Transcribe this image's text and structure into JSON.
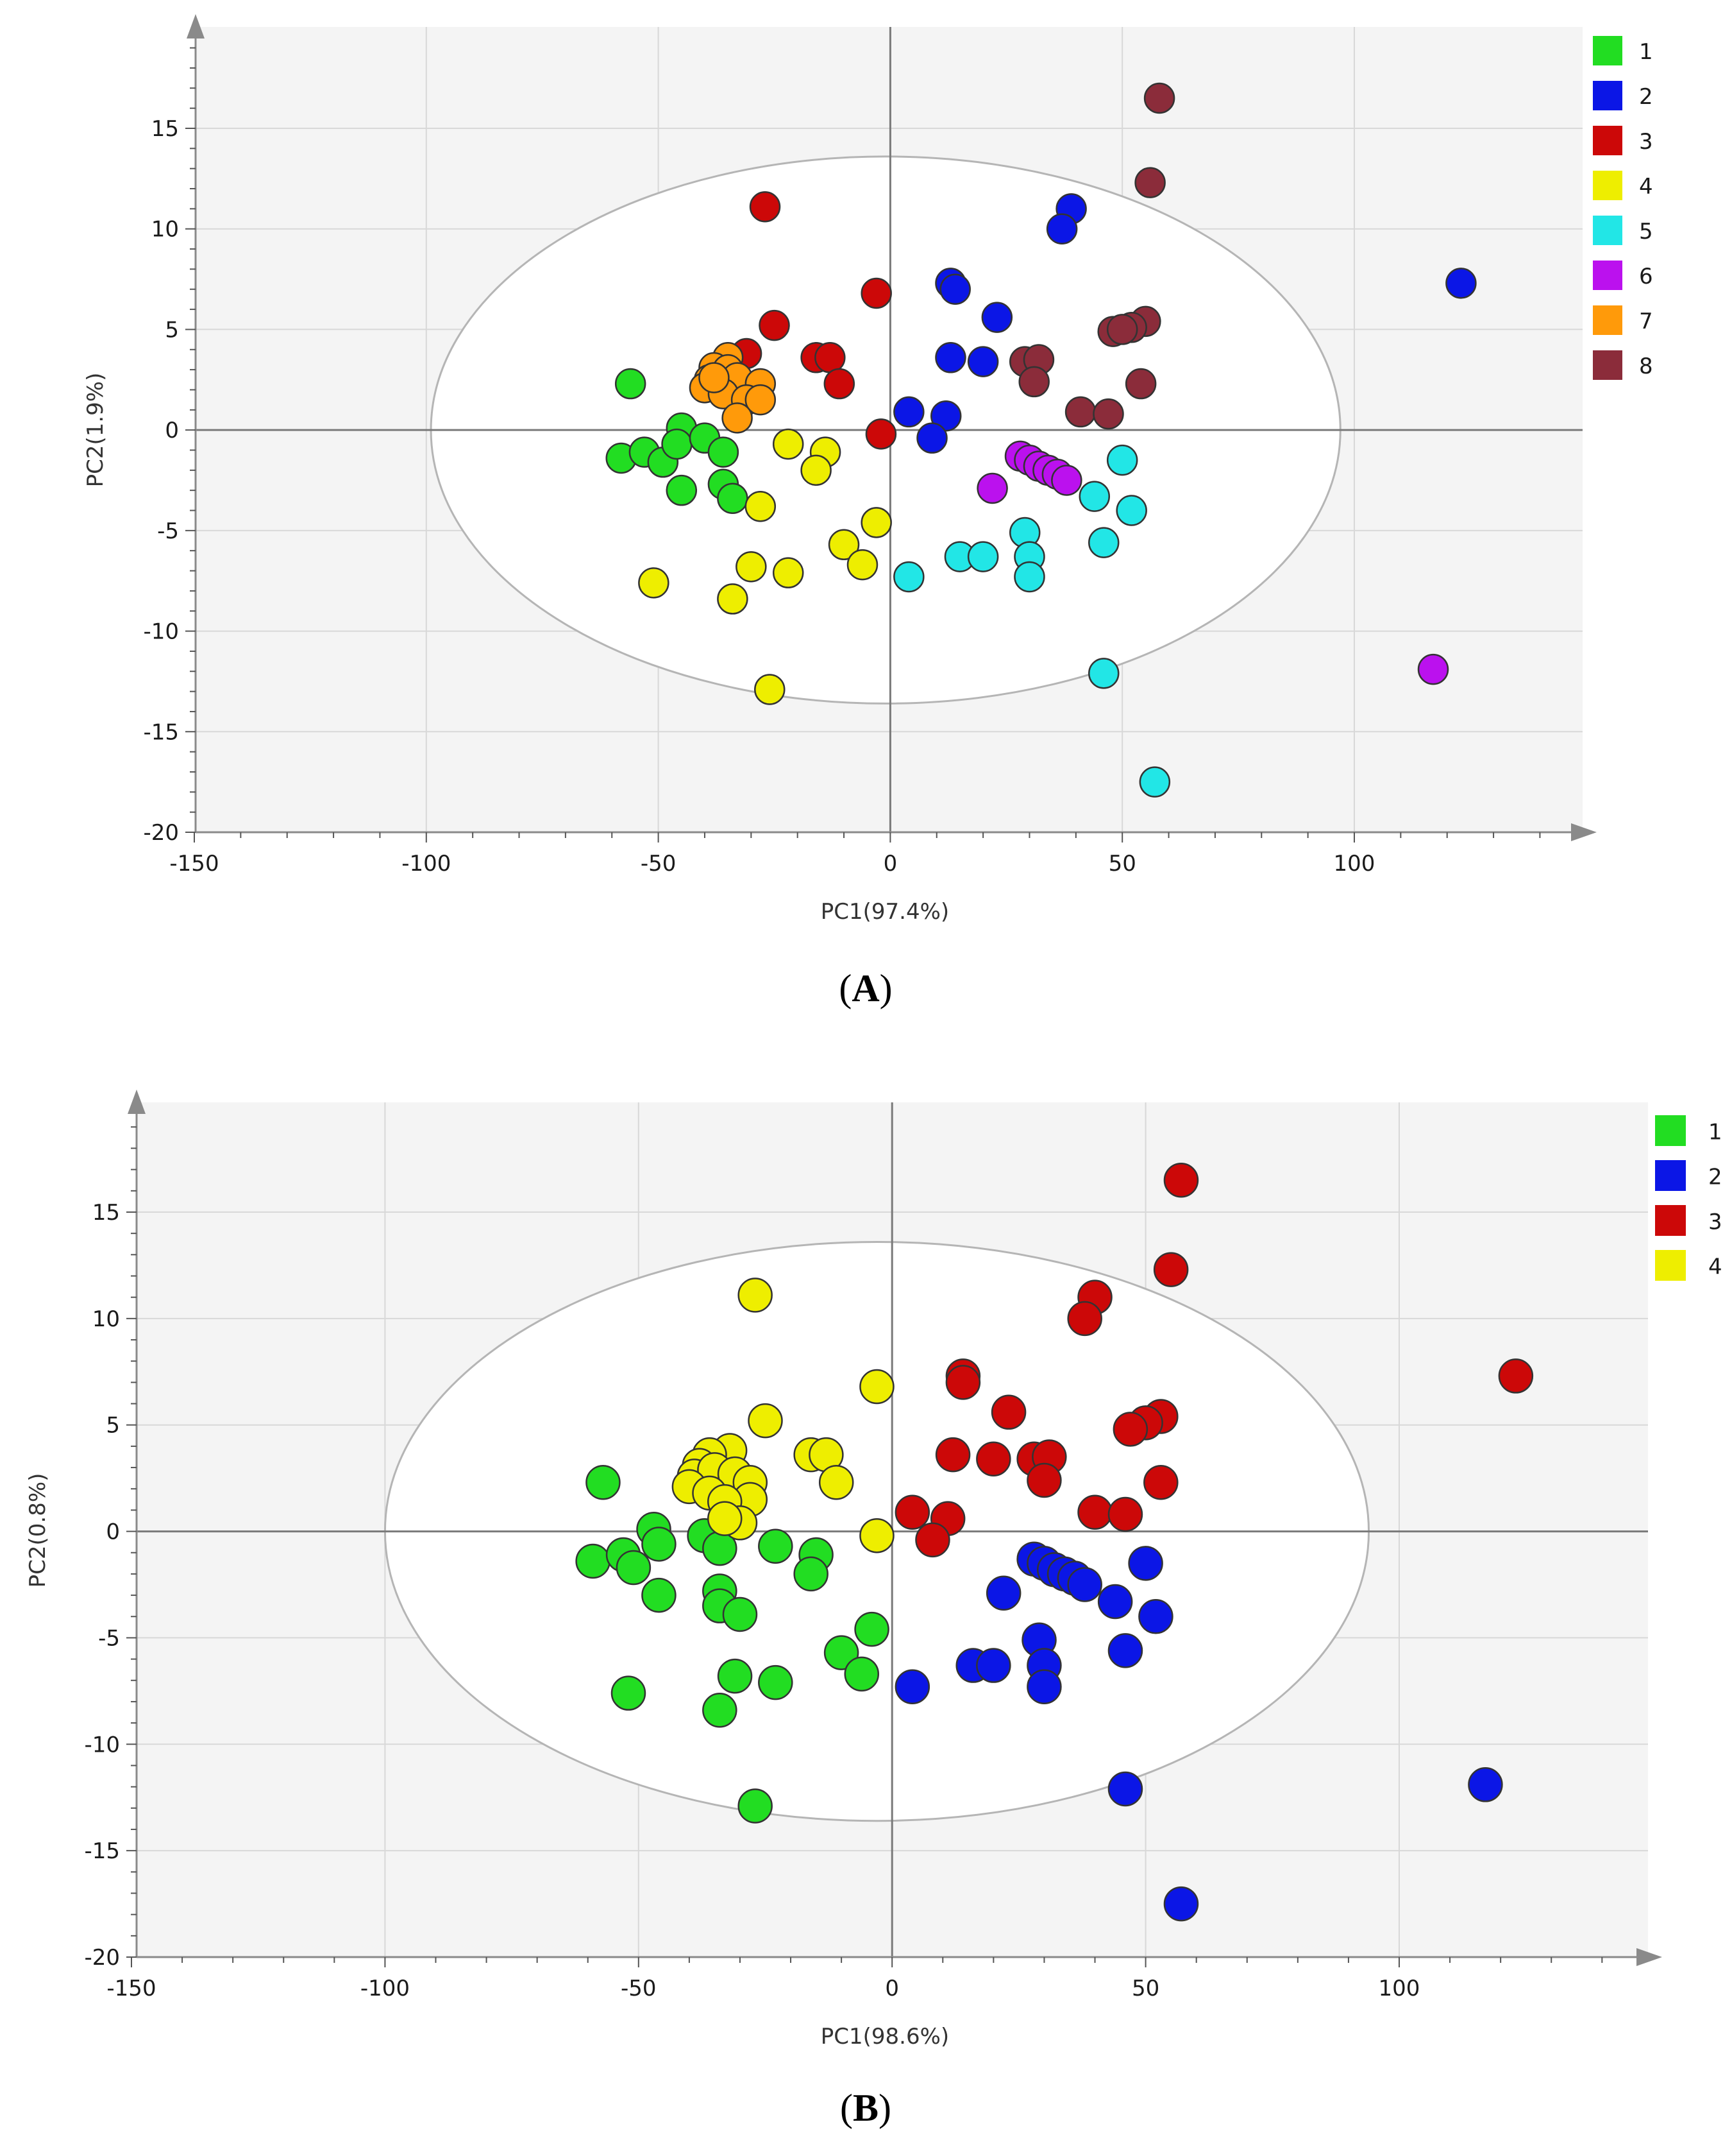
{
  "chart_data": [
    {
      "type": "scatter",
      "panel_label": "A",
      "xlabel": "PC1(97.4%)",
      "ylabel": "PC2(1.9%)",
      "xlim": [
        -150,
        145
      ],
      "ylim": [
        -20,
        19.5
      ],
      "xticks": [
        -150,
        -100,
        -50,
        0,
        50,
        100
      ],
      "yticks": [
        -20,
        -15,
        -10,
        -5,
        0,
        5,
        10,
        15
      ],
      "grid": true,
      "legend_position": "top-right",
      "confidence_ellipse": {
        "center": [
          -1,
          0
        ],
        "semi_axis_x": 98,
        "semi_axis_y": 13.6
      },
      "series": [
        {
          "name": "1",
          "color": "#22dd22",
          "points": [
            [
              -56,
              2.3
            ],
            [
              -58,
              -1.4
            ],
            [
              -53,
              -1.1
            ],
            [
              -49,
              -1.6
            ],
            [
              -45,
              0.1
            ],
            [
              -46,
              -0.7
            ],
            [
              -40,
              -0.4
            ],
            [
              -36,
              -1.1
            ],
            [
              -45,
              -3
            ],
            [
              -36,
              -2.7
            ],
            [
              -34,
              -3.4
            ]
          ]
        },
        {
          "name": "2",
          "color": "#0b16e6",
          "points": [
            [
              39,
              11
            ],
            [
              37,
              10
            ],
            [
              13,
              7.3
            ],
            [
              14,
              7
            ],
            [
              23,
              5.6
            ],
            [
              13,
              3.6
            ],
            [
              20,
              3.4
            ],
            [
              4,
              0.9
            ],
            [
              12,
              0.7
            ],
            [
              9,
              -0.4
            ],
            [
              123,
              7.3
            ]
          ]
        },
        {
          "name": "3",
          "color": "#cc0808",
          "points": [
            [
              -27,
              11.1
            ],
            [
              -3,
              6.8
            ],
            [
              -25,
              5.2
            ],
            [
              -31,
              3.8
            ],
            [
              -16,
              3.6
            ],
            [
              -13,
              3.6
            ],
            [
              -11,
              2.3
            ],
            [
              -2,
              -0.2
            ]
          ]
        },
        {
          "name": "4",
          "color": "#eeee00",
          "points": [
            [
              -22,
              -0.7
            ],
            [
              -14,
              -1.1
            ],
            [
              -16,
              -2
            ],
            [
              -28,
              -3.8
            ],
            [
              -3,
              -4.6
            ],
            [
              -10,
              -5.7
            ],
            [
              -6,
              -6.7
            ],
            [
              -30,
              -6.8
            ],
            [
              -22,
              -7.1
            ],
            [
              -51,
              -7.6
            ],
            [
              -34,
              -8.4
            ],
            [
              -26,
              -12.9
            ]
          ]
        },
        {
          "name": "5",
          "color": "#22e6e6",
          "points": [
            [
              50,
              -1.5
            ],
            [
              44,
              -3.3
            ],
            [
              52,
              -4
            ],
            [
              29,
              -5.1
            ],
            [
              46,
              -5.6
            ],
            [
              15,
              -6.3
            ],
            [
              20,
              -6.3
            ],
            [
              30,
              -6.3
            ],
            [
              30,
              -7.3
            ],
            [
              4,
              -7.3
            ],
            [
              46,
              -12.1
            ],
            [
              57,
              -17.5
            ]
          ]
        },
        {
          "name": "6",
          "color": "#bb11ee",
          "points": [
            [
              28,
              -1.3
            ],
            [
              30,
              -1.5
            ],
            [
              32,
              -1.8
            ],
            [
              34,
              -2
            ],
            [
              36,
              -2.2
            ],
            [
              38,
              -2.5
            ],
            [
              22,
              -2.9
            ],
            [
              117,
              -11.9
            ]
          ]
        },
        {
          "name": "7",
          "color": "#ff9a0a",
          "points": [
            [
              -35,
              3.6
            ],
            [
              -38,
              3.1
            ],
            [
              -35,
              3
            ],
            [
              -39,
              2.5
            ],
            [
              -33,
              2.6
            ],
            [
              -28,
              2.3
            ],
            [
              -40,
              2.1
            ],
            [
              -36,
              1.8
            ],
            [
              -31,
              1.5
            ],
            [
              -28,
              1.5
            ],
            [
              -33,
              0.6
            ],
            [
              -38,
              2.6
            ]
          ]
        },
        {
          "name": "8",
          "color": "#8b2c3a",
          "points": [
            [
              58,
              16.5
            ],
            [
              56,
              12.3
            ],
            [
              55,
              5.4
            ],
            [
              52,
              5.1
            ],
            [
              48,
              4.9
            ],
            [
              50,
              5
            ],
            [
              29,
              3.4
            ],
            [
              32,
              3.5
            ],
            [
              31,
              2.4
            ],
            [
              54,
              2.3
            ],
            [
              41,
              0.9
            ],
            [
              47,
              0.8
            ]
          ]
        }
      ]
    },
    {
      "type": "scatter",
      "panel_label": "B",
      "xlabel": "PC1(98.6%)",
      "ylabel": "PC2(0.8%)",
      "xlim": [
        -150,
        150
      ],
      "ylim": [
        -20,
        19.5
      ],
      "xticks": [
        -150,
        -100,
        -50,
        0,
        50,
        100
      ],
      "yticks": [
        -20,
        -15,
        -10,
        -5,
        0,
        5,
        10,
        15
      ],
      "grid": true,
      "legend_position": "top-right",
      "confidence_ellipse": {
        "center": [
          -3,
          0
        ],
        "semi_axis_x": 97,
        "semi_axis_y": 13.6
      },
      "series": [
        {
          "name": "1",
          "color": "#22dd22",
          "points": [
            [
              -57,
              2.3
            ],
            [
              -59,
              -1.4
            ],
            [
              -53,
              -1.1
            ],
            [
              -47,
              0.1
            ],
            [
              -51,
              -1.7
            ],
            [
              -46,
              -0.6
            ],
            [
              -37,
              -0.2
            ],
            [
              -34,
              -0.8
            ],
            [
              -46,
              -3
            ],
            [
              -34,
              -2.8
            ],
            [
              -34,
              -3.5
            ],
            [
              -30,
              -3.9
            ],
            [
              -23,
              -0.7
            ],
            [
              -15,
              -1.1
            ],
            [
              -16,
              -2
            ],
            [
              -4,
              -4.6
            ],
            [
              -10,
              -5.7
            ],
            [
              -6,
              -6.7
            ],
            [
              -31,
              -6.8
            ],
            [
              -23,
              -7.1
            ],
            [
              -52,
              -7.6
            ],
            [
              -34,
              -8.4
            ],
            [
              -27,
              -12.9
            ]
          ]
        },
        {
          "name": "2",
          "color": "#0b16e6",
          "points": [
            [
              28,
              -1.3
            ],
            [
              30,
              -1.5
            ],
            [
              32,
              -1.8
            ],
            [
              34,
              -2
            ],
            [
              36,
              -2.2
            ],
            [
              38,
              -2.5
            ],
            [
              22,
              -2.9
            ],
            [
              50,
              -1.5
            ],
            [
              44,
              -3.3
            ],
            [
              52,
              -4
            ],
            [
              29,
              -5.1
            ],
            [
              46,
              -5.6
            ],
            [
              16,
              -6.3
            ],
            [
              20,
              -6.3
            ],
            [
              30,
              -6.3
            ],
            [
              30,
              -7.3
            ],
            [
              4,
              -7.3
            ],
            [
              46,
              -12.1
            ],
            [
              57,
              -17.5
            ],
            [
              117,
              -11.9
            ]
          ]
        },
        {
          "name": "3",
          "color": "#cc0808",
          "points": [
            [
              57,
              16.5
            ],
            [
              55,
              12.3
            ],
            [
              40,
              11
            ],
            [
              38,
              10
            ],
            [
              14,
              7.3
            ],
            [
              14,
              7
            ],
            [
              23,
              5.6
            ],
            [
              53,
              5.4
            ],
            [
              50,
              5.1
            ],
            [
              47,
              4.8
            ],
            [
              12,
              3.6
            ],
            [
              20,
              3.4
            ],
            [
              28,
              3.4
            ],
            [
              31,
              3.5
            ],
            [
              30,
              2.4
            ],
            [
              53,
              2.3
            ],
            [
              4,
              0.9
            ],
            [
              11,
              0.6
            ],
            [
              40,
              0.9
            ],
            [
              46,
              0.8
            ],
            [
              8,
              -0.4
            ],
            [
              123,
              7.3
            ]
          ]
        },
        {
          "name": "4",
          "color": "#eeee00",
          "points": [
            [
              -27,
              11.1
            ],
            [
              -3,
              6.8
            ],
            [
              -25,
              5.2
            ],
            [
              -32,
              3.8
            ],
            [
              -16,
              3.6
            ],
            [
              -13,
              3.6
            ],
            [
              -11,
              2.3
            ],
            [
              -3,
              -0.2
            ],
            [
              -36,
              3.6
            ],
            [
              -38,
              3.1
            ],
            [
              -39,
              2.6
            ],
            [
              -35,
              2.9
            ],
            [
              -31,
              2.7
            ],
            [
              -28,
              2.3
            ],
            [
              -40,
              2.1
            ],
            [
              -36,
              1.8
            ],
            [
              -28,
              1.5
            ],
            [
              -33,
              1.4
            ],
            [
              -30,
              0.4
            ],
            [
              -33,
              0.6
            ]
          ]
        }
      ]
    }
  ]
}
